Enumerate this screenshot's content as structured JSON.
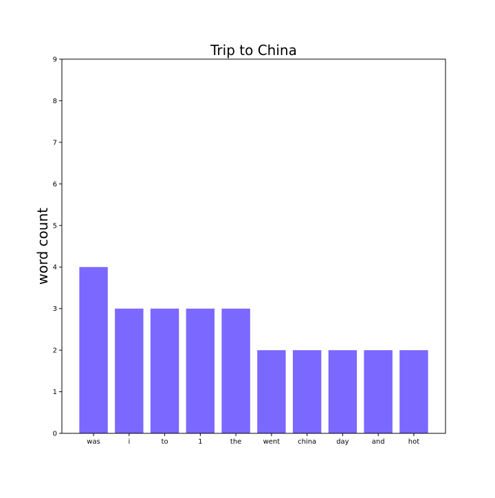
{
  "chart_data": {
    "type": "bar",
    "title": "Trip to China",
    "xlabel": "",
    "ylabel": "word count",
    "categories": [
      "was",
      "i",
      "to",
      "1",
      "the",
      "went",
      "china",
      "day",
      "and",
      "hot"
    ],
    "values": [
      4,
      3,
      3,
      3,
      3,
      2,
      2,
      2,
      2,
      2
    ],
    "ylim": [
      0,
      9
    ],
    "yticks": [
      0,
      1,
      2,
      3,
      4,
      5,
      6,
      7,
      8,
      9
    ],
    "grid": false,
    "legend": "none",
    "bar_color": "#7b68ff"
  }
}
